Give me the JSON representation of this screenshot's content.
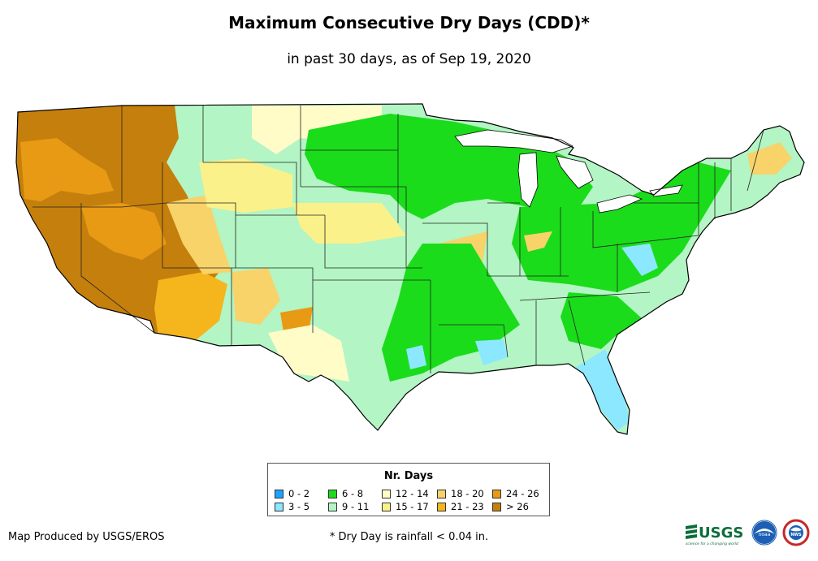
{
  "title": "Maximum Consecutive Dry Days (CDD)*",
  "subtitle": "in past 30 days, as of Sep 19, 2020",
  "legend": {
    "title": "Nr. Days",
    "classes": [
      {
        "label": "0 - 2",
        "color": "#1aa3ff"
      },
      {
        "label": "3 - 5",
        "color": "#8ce8ff"
      },
      {
        "label": "6 - 8",
        "color": "#1adc1a"
      },
      {
        "label": "9 - 11",
        "color": "#b3f5c4"
      },
      {
        "label": "12 - 14",
        "color": "#fffcc8"
      },
      {
        "label": "15 - 17",
        "color": "#fbf18a"
      },
      {
        "label": "18 - 20",
        "color": "#f7d36a"
      },
      {
        "label": "21 - 23",
        "color": "#f5b51d"
      },
      {
        "label": "24 - 26",
        "color": "#e89a14"
      },
      {
        "label": "> 26",
        "color": "#c57f0c"
      }
    ]
  },
  "footer": {
    "credit": "Map Produced by USGS/EROS",
    "note": "* Dry Day is rainfall < 0.04 in."
  },
  "logos": {
    "usgs": "USGS",
    "usgs_tagline": "science for a changing world",
    "noaa": "noaa",
    "nws": "NWS"
  }
}
